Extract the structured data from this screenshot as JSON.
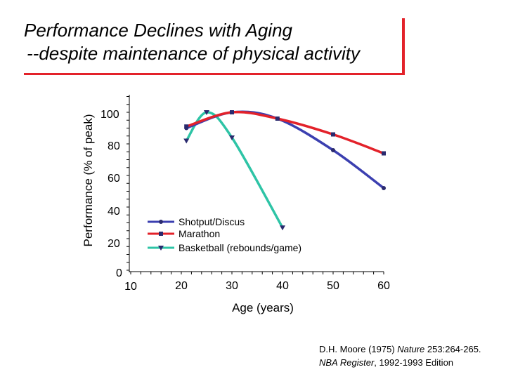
{
  "title": {
    "line1": "Performance Declines with Aging",
    "line2": " --despite maintenance of physical activity"
  },
  "colors": {
    "accent": "#e3222a",
    "shotput": "#3b3fb0",
    "marathon": "#e3222a",
    "basketball": "#2ec4a6"
  },
  "chart_data": {
    "type": "line",
    "ylabel": "Performance (% of peak)",
    "xlabel": "Age (years)",
    "xlim": [
      10,
      60
    ],
    "ylim": [
      0,
      100
    ],
    "x_ticks": [
      "10",
      "20",
      "30",
      "40",
      "50",
      "60"
    ],
    "y_ticks": [
      "0",
      "20",
      "40",
      "60",
      "80",
      "100"
    ],
    "grid": false,
    "legend_placement": "center",
    "series": [
      {
        "name": "Shotput/Discus",
        "x": [
          21,
          30,
          39,
          50,
          60
        ],
        "y": [
          90,
          100,
          96,
          76,
          52
        ]
      },
      {
        "name": "Marathon",
        "x": [
          21,
          30,
          39,
          50,
          60
        ],
        "y": [
          91,
          100,
          96,
          86,
          74
        ]
      },
      {
        "name": "Basketball (rebounds/game)",
        "x": [
          21,
          25,
          30,
          40
        ],
        "y": [
          82,
          100,
          84,
          27
        ]
      }
    ]
  },
  "source": {
    "line1_prefix": "D.H. Moore (1975) ",
    "line1_journal": "Nature",
    "line1_suffix": " 253:264-265.",
    "line2_book": "NBA Register",
    "line2_suffix": ", 1992-1993 Edition"
  }
}
